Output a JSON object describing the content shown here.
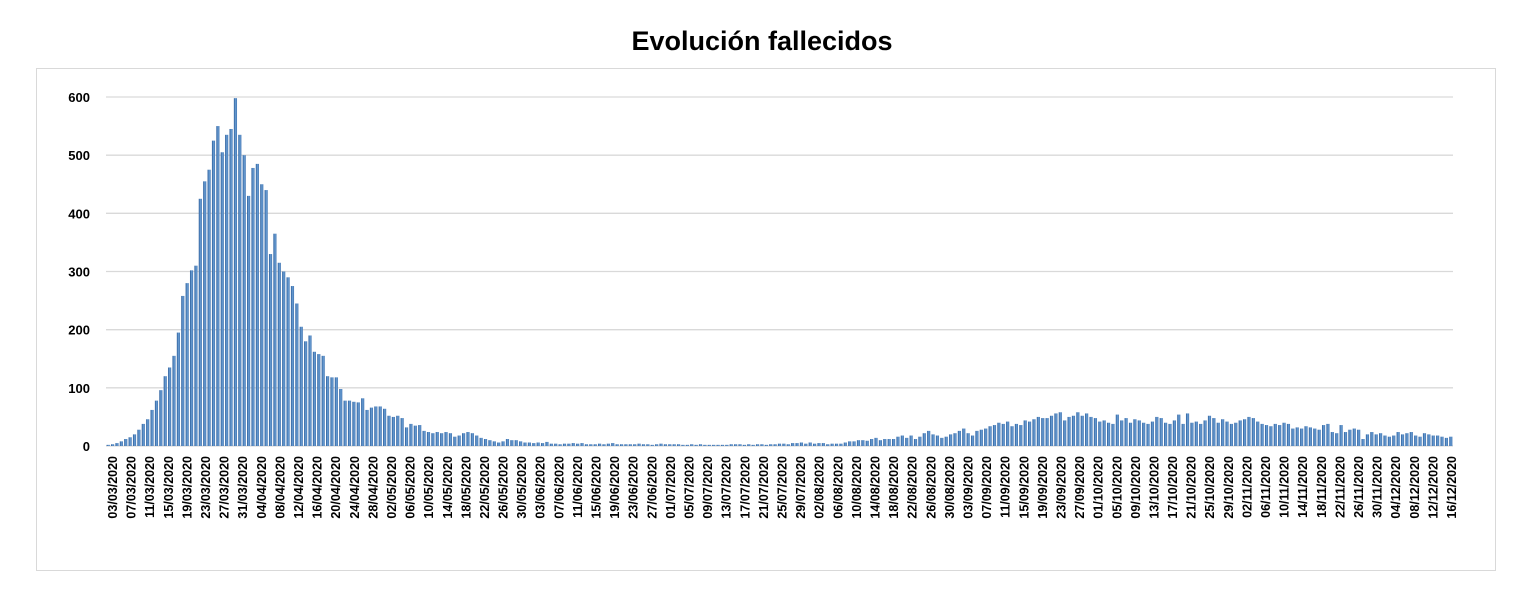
{
  "chart_data": {
    "type": "bar",
    "title": "Evolución fallecidos",
    "xlabel": "",
    "ylabel": "",
    "ylim": [
      0,
      600
    ],
    "yticks": [
      "0",
      "100",
      "200",
      "300",
      "400",
      "500",
      "600"
    ],
    "grid": true,
    "legend": "none",
    "start_date": "03/03/2020",
    "end_date": "16/12/2020",
    "tick_labels": [
      "03/03/2020",
      "07/03/2020",
      "11/03/2020",
      "15/03/2020",
      "19/03/2020",
      "23/03/2020",
      "27/03/2020",
      "31/03/2020",
      "04/04/2020",
      "08/04/2020",
      "12/04/2020",
      "16/04/2020",
      "20/04/2020",
      "24/04/2020",
      "28/04/2020",
      "02/05/2020",
      "06/05/2020",
      "10/05/2020",
      "14/05/2020",
      "18/05/2020",
      "22/05/2020",
      "26/05/2020",
      "30/05/2020",
      "03/06/2020",
      "07/06/2020",
      "11/06/2020",
      "15/06/2020",
      "19/06/2020",
      "23/06/2020",
      "27/06/2020",
      "01/07/2020",
      "05/07/2020",
      "09/07/2020",
      "13/07/2020",
      "17/07/2020",
      "21/07/2020",
      "25/07/2020",
      "29/07/2020",
      "02/08/2020",
      "06/08/2020",
      "10/08/2020",
      "14/08/2020",
      "18/08/2020",
      "22/08/2020",
      "26/08/2020",
      "30/08/2020",
      "03/09/2020",
      "07/09/2020",
      "11/09/2020",
      "15/09/2020",
      "19/09/2020",
      "23/09/2020",
      "27/09/2020",
      "01/10/2020",
      "05/10/2020",
      "09/10/2020",
      "13/10/2020",
      "17/10/2020",
      "21/10/2020",
      "25/10/2020",
      "29/10/2020",
      "02/11/2020",
      "06/11/2020",
      "10/11/2020",
      "14/11/2020",
      "18/11/2020",
      "22/11/2020",
      "26/11/2020",
      "30/11/2020",
      "04/12/2020",
      "08/12/2020",
      "12/12/2020",
      "16/12/2020"
    ],
    "values": [
      2,
      3,
      5,
      8,
      12,
      15,
      20,
      28,
      38,
      46,
      62,
      78,
      96,
      120,
      135,
      155,
      195,
      258,
      280,
      302,
      310,
      425,
      455,
      475,
      525,
      550,
      505,
      535,
      545,
      598,
      535,
      500,
      430,
      478,
      485,
      450,
      440,
      330,
      365,
      315,
      300,
      290,
      275,
      245,
      205,
      180,
      190,
      162,
      158,
      155,
      120,
      118,
      118,
      98,
      78,
      78,
      76,
      75,
      82,
      62,
      66,
      68,
      68,
      64,
      52,
      50,
      52,
      48,
      32,
      38,
      35,
      36,
      26,
      24,
      22,
      24,
      22,
      24,
      22,
      16,
      18,
      22,
      24,
      22,
      18,
      14,
      12,
      10,
      8,
      6,
      8,
      12,
      10,
      10,
      8,
      6,
      6,
      5,
      6,
      5,
      7,
      4,
      4,
      3,
      4,
      4,
      5,
      4,
      5,
      3,
      3,
      3,
      4,
      3,
      4,
      5,
      3,
      3,
      3,
      3,
      3,
      4,
      3,
      3,
      2,
      3,
      4,
      3,
      3,
      3,
      3,
      2,
      2,
      3,
      2,
      3,
      2,
      2,
      2,
      2,
      2,
      2,
      3,
      3,
      3,
      2,
      3,
      2,
      3,
      3,
      2,
      3,
      3,
      4,
      4,
      3,
      5,
      5,
      6,
      4,
      6,
      4,
      5,
      5,
      3,
      4,
      4,
      4,
      6,
      8,
      8,
      10,
      10,
      9,
      12,
      14,
      10,
      12,
      12,
      12,
      16,
      18,
      14,
      18,
      12,
      16,
      22,
      26,
      20,
      18,
      14,
      16,
      20,
      22,
      26,
      30,
      22,
      18,
      26,
      28,
      30,
      34,
      36,
      40,
      38,
      42,
      34,
      38,
      36,
      44,
      42,
      46,
      50,
      48,
      48,
      52,
      56,
      58,
      44,
      50,
      52,
      58,
      52,
      56,
      50,
      48,
      42,
      44,
      40,
      38,
      54,
      44,
      48,
      40,
      46,
      44,
      40,
      38,
      42,
      50,
      48,
      40,
      38,
      44,
      54,
      38,
      56,
      40,
      42,
      38,
      44,
      52,
      48,
      40,
      46,
      42,
      38,
      40,
      44,
      46,
      50,
      48,
      42,
      38,
      36,
      34,
      38,
      36,
      40,
      38,
      30,
      32,
      30,
      34,
      32,
      30,
      28,
      36,
      38,
      24,
      22,
      36,
      24,
      28,
      30,
      28,
      12,
      20,
      24,
      20,
      22,
      18,
      16,
      18,
      24,
      20,
      22,
      24,
      18,
      16,
      22,
      20,
      18,
      18,
      16,
      14,
      16
    ]
  }
}
